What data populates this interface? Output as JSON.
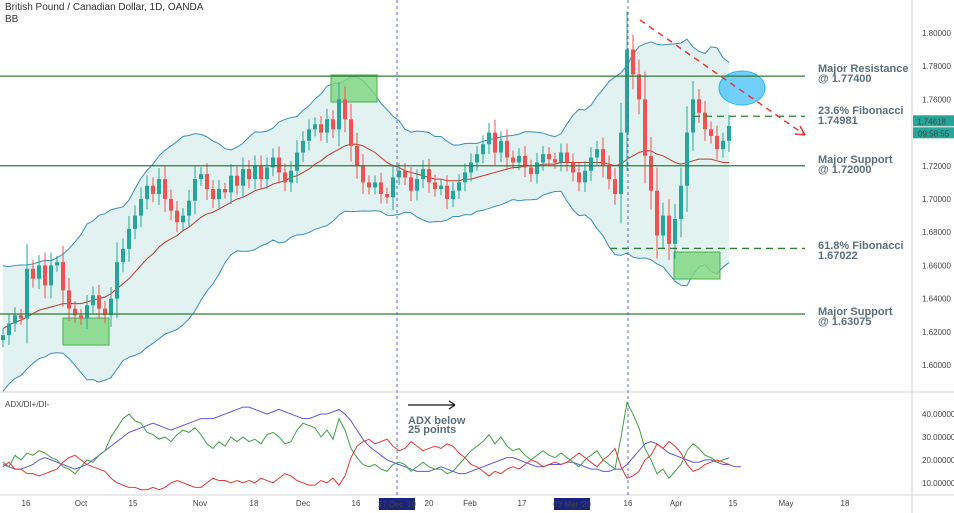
{
  "header": {
    "symbol": "British Pound / Canadian Dollar, 1D, OANDA",
    "indicator": "BB"
  },
  "chart_data": [
    {
      "type": "candlestick",
      "title": "British Pound / Canadian Dollar, 1D, OANDA",
      "ylim": [
        1.585,
        1.815
      ],
      "yticks": [
        "1.80000",
        "1.78000",
        "1.76000",
        "1.74000",
        "1.72000",
        "1.70000",
        "1.68000",
        "1.66000",
        "1.64000",
        "1.62000",
        "1.60000"
      ],
      "ytick_values": [
        1.8,
        1.78,
        1.76,
        1.74,
        1.72,
        1.7,
        1.68,
        1.66,
        1.64,
        1.62,
        1.6
      ],
      "xticks": [
        "16",
        "Oct",
        "15",
        "Nov",
        "18",
        "Dec",
        "16",
        "27 Dec '19",
        "20",
        "Feb",
        "17",
        "03 Mar '20",
        "16",
        "Apr",
        "15",
        "May",
        "18"
      ],
      "last_price": "1.74618",
      "countdown": "09:58:55",
      "levels": [
        {
          "label": "Major Resistance",
          "value_label": "@ 1.77400",
          "value": 1.774,
          "style": "solid"
        },
        {
          "label": "23.6% Fibonacci",
          "value_label": "1.74981",
          "value": 1.74981,
          "style": "dashed"
        },
        {
          "label": "Major Support",
          "value_label": "@ 1.72000",
          "value": 1.72,
          "style": "solid"
        },
        {
          "label": "61.8% Fibonacci",
          "value_label": "1.67022",
          "value": 1.67022,
          "style": "dashed"
        },
        {
          "label": "Major Support",
          "value_label": "@ 1.63075",
          "value": 1.63075,
          "style": "solid"
        }
      ],
      "closes": [
        1.618,
        1.625,
        1.63,
        1.628,
        1.658,
        1.652,
        1.66,
        1.648,
        1.66,
        1.662,
        1.645,
        1.634,
        1.63,
        1.628,
        1.636,
        1.642,
        1.634,
        1.63,
        1.64,
        1.662,
        1.67,
        1.682,
        1.69,
        1.7,
        1.708,
        1.703,
        1.712,
        1.7,
        1.693,
        1.686,
        1.69,
        1.699,
        1.712,
        1.715,
        1.706,
        1.7,
        1.706,
        1.704,
        1.714,
        1.708,
        1.718,
        1.712,
        1.72,
        1.712,
        1.719,
        1.725,
        1.716,
        1.71,
        1.717,
        1.728,
        1.735,
        1.742,
        1.745,
        1.74,
        1.748,
        1.742,
        1.76,
        1.748,
        1.732,
        1.72,
        1.71,
        1.707,
        1.71,
        1.703,
        1.701,
        1.713,
        1.717,
        1.713,
        1.705,
        1.712,
        1.718,
        1.71,
        1.706,
        1.708,
        1.7,
        1.705,
        1.71,
        1.716,
        1.722,
        1.727,
        1.733,
        1.74,
        1.728,
        1.735,
        1.725,
        1.722,
        1.726,
        1.719,
        1.715,
        1.722,
        1.727,
        1.724,
        1.722,
        1.728,
        1.722,
        1.716,
        1.71,
        1.717,
        1.725,
        1.73,
        1.72,
        1.712,
        1.703,
        1.74,
        1.79,
        1.775,
        1.76,
        1.726,
        1.705,
        1.678,
        1.69,
        1.673,
        1.688,
        1.708,
        1.74,
        1.76,
        1.752,
        1.742,
        1.738,
        1.73,
        1.735,
        1.744
      ],
      "bb_mid": [
        1.622,
        1.624,
        1.626,
        1.627,
        1.629,
        1.631,
        1.633,
        1.634,
        1.635,
        1.636,
        1.637,
        1.637,
        1.637,
        1.637,
        1.638,
        1.639,
        1.64,
        1.641,
        1.643,
        1.646,
        1.649,
        1.652,
        1.656,
        1.66,
        1.664,
        1.667,
        1.671,
        1.674,
        1.676,
        1.678,
        1.681,
        1.683,
        1.686,
        1.689,
        1.691,
        1.692,
        1.694,
        1.696,
        1.698,
        1.7,
        1.701,
        1.703,
        1.705,
        1.706,
        1.707,
        1.709,
        1.71,
        1.711,
        1.713,
        1.714,
        1.716,
        1.718,
        1.721,
        1.723,
        1.726,
        1.728,
        1.73,
        1.732,
        1.733,
        1.733,
        1.732,
        1.73,
        1.728,
        1.725,
        1.722,
        1.72,
        1.719,
        1.717,
        1.716,
        1.715,
        1.714,
        1.713,
        1.712,
        1.712,
        1.711,
        1.711,
        1.711,
        1.712,
        1.712,
        1.713,
        1.714,
        1.715,
        1.716,
        1.717,
        1.718,
        1.719,
        1.719,
        1.72,
        1.72,
        1.72,
        1.721,
        1.721,
        1.721,
        1.722,
        1.722,
        1.722,
        1.722,
        1.722,
        1.722,
        1.722,
        1.722,
        1.721,
        1.72,
        1.721,
        1.724,
        1.726,
        1.728,
        1.729,
        1.729,
        1.727,
        1.726,
        1.724,
        1.722,
        1.721,
        1.722,
        1.723,
        1.724,
        1.724,
        1.724,
        1.723,
        1.722,
        1.722
      ],
      "adx_series": [
        {
          "name": "ADX",
          "color": "#5b5bd6",
          "values": [
            18,
            17,
            16,
            16,
            17,
            18,
            20,
            21,
            20,
            19,
            18,
            17,
            16,
            17,
            18,
            20,
            22,
            24,
            26,
            28,
            30,
            32,
            33,
            34,
            35,
            36,
            35,
            34,
            33,
            34,
            35,
            36,
            37,
            38,
            38,
            38,
            39,
            40,
            41,
            42,
            43,
            43,
            42,
            41,
            40,
            41,
            42,
            41,
            40,
            39,
            38,
            38,
            39,
            40,
            40,
            41,
            42,
            40,
            37,
            33,
            29,
            26,
            24,
            22,
            20,
            19,
            18,
            17,
            16,
            15,
            15,
            15,
            16,
            17,
            16,
            15,
            14,
            14,
            15,
            16,
            17,
            18,
            19,
            20,
            21,
            21,
            20,
            19,
            18,
            17,
            17,
            18,
            18,
            18,
            19,
            19,
            18,
            17,
            16,
            16,
            15,
            15,
            16,
            16,
            18,
            21,
            24,
            27,
            28,
            27,
            25,
            23,
            22,
            21,
            20,
            19,
            19,
            20,
            20,
            19,
            18,
            18,
            17,
            17
          ]
        },
        {
          "name": "DI+",
          "color": "#43a047",
          "values": [
            19,
            17,
            22,
            20,
            23,
            22,
            24,
            23,
            21,
            20,
            17,
            16,
            14,
            17,
            20,
            19,
            22,
            24,
            30,
            34,
            38,
            40,
            37,
            36,
            32,
            31,
            29,
            30,
            28,
            31,
            33,
            32,
            34,
            31,
            27,
            25,
            28,
            26,
            30,
            28,
            30,
            28,
            29,
            27,
            31,
            32,
            30,
            27,
            28,
            33,
            36,
            35,
            34,
            30,
            33,
            29,
            38,
            33,
            25,
            21,
            18,
            17,
            18,
            16,
            15,
            18,
            19,
            18,
            15,
            17,
            19,
            17,
            16,
            16,
            14,
            15,
            18,
            21,
            24,
            26,
            28,
            31,
            27,
            30,
            26,
            24,
            25,
            22,
            20,
            22,
            24,
            22,
            21,
            23,
            21,
            19,
            17,
            20,
            22,
            24,
            20,
            18,
            16,
            30,
            45,
            40,
            34,
            25,
            20,
            14,
            16,
            12,
            15,
            18,
            24,
            27,
            25,
            22,
            21,
            19,
            20,
            21
          ]
        },
        {
          "name": "DI-",
          "color": "#e53935",
          "values": [
            17,
            19,
            16,
            16,
            14,
            14,
            13,
            14,
            15,
            16,
            19,
            21,
            22,
            20,
            18,
            17,
            16,
            15,
            12,
            10,
            9,
            8,
            8,
            7,
            7,
            8,
            7,
            8,
            10,
            11,
            10,
            9,
            8,
            8,
            10,
            12,
            11,
            11,
            10,
            11,
            10,
            11,
            10,
            12,
            11,
            10,
            12,
            14,
            13,
            11,
            10,
            9,
            9,
            11,
            10,
            12,
            9,
            13,
            21,
            26,
            28,
            29,
            27,
            28,
            29,
            26,
            24,
            25,
            28,
            26,
            24,
            25,
            26,
            25,
            27,
            26,
            23,
            21,
            18,
            17,
            15,
            13,
            15,
            14,
            16,
            17,
            16,
            18,
            20,
            19,
            17,
            18,
            19,
            18,
            19,
            21,
            23,
            21,
            19,
            17,
            20,
            22,
            25,
            17,
            12,
            13,
            15,
            20,
            22,
            27,
            25,
            28,
            26,
            23,
            18,
            15,
            16,
            18,
            19,
            20,
            19,
            18
          ]
        }
      ],
      "adx_title": "ADX/DI+/DI-",
      "adx_yticks": [
        "40.00000",
        "30.00000",
        "20.00000",
        "10.00000"
      ],
      "adx_ytick_values": [
        40,
        30,
        20,
        10
      ],
      "adx_ylim": [
        6,
        47
      ],
      "adx_note": [
        "ADX below",
        "25 points"
      ],
      "date_tags": [
        "27 Dec '19",
        "03 Mar '20"
      ]
    }
  ]
}
